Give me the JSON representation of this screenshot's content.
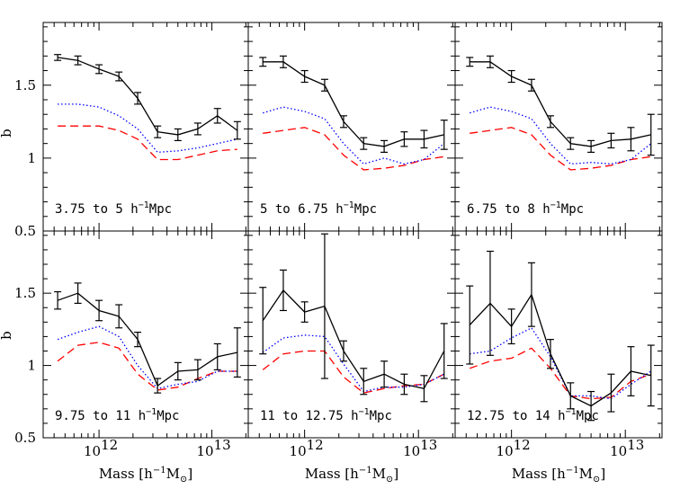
{
  "figure": {
    "ylabel": "b",
    "xlabel": "Mass [h",
    "xlabel_sup": "−1",
    "xlabel_tail": "M",
    "xlabel_sub": "⊙",
    "xlabel_close": "]"
  },
  "chart_data": {
    "type": "line",
    "x_scale": "log",
    "xlim": [
      320000000000.0,
      21000000000000.0
    ],
    "ylim": [
      0.5,
      1.93
    ],
    "yticks": [
      0.5,
      1,
      1.5
    ],
    "ytick_labels": [
      "0.5",
      "1",
      "1.5"
    ],
    "xticks": [
      1000000000000.0,
      10000000000000.0
    ],
    "xtick_labels": [
      {
        "base": "10",
        "exp": "12"
      },
      {
        "base": "10",
        "exp": "13"
      }
    ],
    "series_styles": {
      "measured": "#000000",
      "model_dotted": "#0000ff",
      "model_dashed": "#ff0000"
    },
    "panels": [
      {
        "label": "3.75 to 5 h",
        "label_sup": "−1",
        "label_tail": "Mpc",
        "x": [
          430000000000.0,
          650000000000.0,
          1000000000000.0,
          1500000000000.0,
          2200000000000.0,
          3300000000000.0,
          5000000000000.0,
          7500000000000.0,
          11200000000000.0,
          16800000000000.0
        ],
        "measured": [
          1.69,
          1.67,
          1.61,
          1.56,
          1.41,
          1.18,
          1.16,
          1.2,
          1.29,
          1.19
        ],
        "errors": [
          0.02,
          0.03,
          0.03,
          0.03,
          0.04,
          0.04,
          0.04,
          0.04,
          0.05,
          0.06
        ],
        "model_dotted": [
          1.37,
          1.37,
          1.35,
          1.29,
          1.2,
          1.04,
          1.05,
          1.07,
          1.1,
          1.13
        ],
        "model_dashed": [
          1.22,
          1.22,
          1.22,
          1.19,
          1.13,
          0.99,
          0.99,
          1.02,
          1.05,
          1.06
        ]
      },
      {
        "label": "5 to 6.75 h",
        "label_sup": "−1",
        "label_tail": "Mpc",
        "x": [
          430000000000.0,
          650000000000.0,
          1000000000000.0,
          1500000000000.0,
          2200000000000.0,
          3300000000000.0,
          5000000000000.0,
          7500000000000.0,
          11200000000000.0,
          16800000000000.0
        ],
        "measured": [
          1.66,
          1.66,
          1.56,
          1.5,
          1.25,
          1.1,
          1.08,
          1.13,
          1.13,
          1.16
        ],
        "errors": [
          0.03,
          0.04,
          0.04,
          0.04,
          0.04,
          0.04,
          0.04,
          0.05,
          0.06,
          0.1
        ],
        "model_dotted": [
          1.31,
          1.35,
          1.32,
          1.27,
          1.1,
          0.96,
          1.0,
          0.96,
          0.99,
          1.1
        ],
        "model_dashed": [
          1.17,
          1.19,
          1.21,
          1.16,
          1.02,
          0.92,
          0.93,
          0.95,
          0.99,
          1.01
        ]
      },
      {
        "label": "6.75 to 8 h",
        "label_sup": "−1",
        "label_tail": "Mpc",
        "x": [
          430000000000.0,
          650000000000.0,
          1000000000000.0,
          1500000000000.0,
          2200000000000.0,
          3300000000000.0,
          5000000000000.0,
          7500000000000.0,
          11200000000000.0,
          16800000000000.0
        ],
        "measured": [
          1.66,
          1.66,
          1.56,
          1.5,
          1.25,
          1.1,
          1.08,
          1.12,
          1.13,
          1.16
        ],
        "errors": [
          0.03,
          0.04,
          0.04,
          0.04,
          0.04,
          0.04,
          0.04,
          0.05,
          0.08,
          0.14
        ],
        "model_dotted": [
          1.31,
          1.35,
          1.32,
          1.27,
          1.1,
          0.96,
          0.97,
          0.96,
          0.99,
          1.1
        ],
        "model_dashed": [
          1.17,
          1.19,
          1.21,
          1.16,
          1.02,
          0.92,
          0.93,
          0.95,
          0.99,
          1.01
        ]
      },
      {
        "label": "9.75 to 11 h",
        "label_sup": "−1",
        "label_tail": "Mpc",
        "x": [
          430000000000.0,
          650000000000.0,
          1000000000000.0,
          1500000000000.0,
          2200000000000.0,
          3300000000000.0,
          5000000000000.0,
          7500000000000.0,
          11200000000000.0,
          16800000000000.0
        ],
        "measured": [
          1.45,
          1.5,
          1.38,
          1.34,
          1.18,
          0.86,
          0.96,
          0.97,
          1.06,
          1.09
        ],
        "errors": [
          0.06,
          0.07,
          0.07,
          0.08,
          0.05,
          0.05,
          0.06,
          0.07,
          0.09,
          0.17
        ],
        "model_dotted": [
          1.18,
          1.23,
          1.27,
          1.2,
          1.0,
          0.84,
          0.87,
          0.89,
          0.96,
          0.96
        ],
        "model_dashed": [
          1.03,
          1.14,
          1.16,
          1.12,
          0.94,
          0.83,
          0.85,
          0.91,
          0.96,
          0.96
        ]
      },
      {
        "label": "11 to 12.75 h",
        "label_sup": "−1",
        "label_tail": "Mpc",
        "x": [
          430000000000.0,
          650000000000.0,
          1000000000000.0,
          1500000000000.0,
          2200000000000.0,
          3300000000000.0,
          5000000000000.0,
          7500000000000.0,
          11200000000000.0,
          16800000000000.0
        ],
        "measured": [
          1.31,
          1.52,
          1.37,
          1.41,
          1.1,
          0.89,
          0.94,
          0.87,
          0.84,
          1.1
        ],
        "errors": [
          0.23,
          0.14,
          0.07,
          0.5,
          0.07,
          0.09,
          0.09,
          0.07,
          0.09,
          0.19
        ],
        "model_dotted": [
          1.09,
          1.19,
          1.21,
          1.2,
          1.01,
          0.82,
          0.85,
          0.85,
          0.87,
          0.94
        ],
        "model_dashed": [
          0.97,
          1.08,
          1.1,
          1.1,
          0.92,
          0.81,
          0.84,
          0.86,
          0.87,
          0.94
        ]
      },
      {
        "label": "12.75 to 14 h",
        "label_sup": "−1",
        "label_tail": "Mpc",
        "x": [
          430000000000.0,
          650000000000.0,
          1000000000000.0,
          1500000000000.0,
          2200000000000.0,
          3300000000000.0,
          5000000000000.0,
          7500000000000.0,
          11200000000000.0,
          16800000000000.0
        ],
        "measured": [
          1.28,
          1.43,
          1.27,
          1.49,
          1.08,
          0.79,
          0.72,
          0.81,
          0.96,
          0.93
        ],
        "errors": [
          0.27,
          0.36,
          0.12,
          0.22,
          0.1,
          0.09,
          0.1,
          0.13,
          0.17,
          0.21
        ],
        "model_dotted": [
          1.08,
          1.1,
          1.19,
          1.26,
          1.06,
          0.79,
          0.79,
          0.77,
          0.87,
          0.96
        ],
        "model_dashed": [
          0.98,
          1.03,
          1.05,
          1.12,
          0.98,
          0.79,
          0.77,
          0.78,
          0.89,
          0.94
        ]
      }
    ]
  }
}
